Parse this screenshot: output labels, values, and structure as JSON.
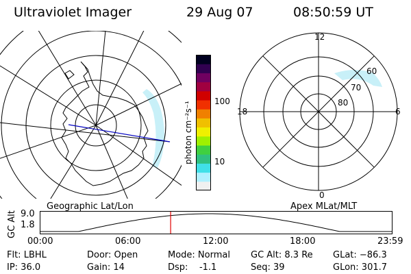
{
  "header": {
    "title": "Ultraviolet Imager",
    "date": "29 Aug 07",
    "time": "08:50:59 UT"
  },
  "left_map": {
    "caption": "Geographic Lat/Lon"
  },
  "right_map": {
    "caption": "Apex MLat/MLT",
    "mlt_labels": [
      "12",
      "18",
      "6",
      "0"
    ],
    "mlat_labels": [
      "60",
      "70",
      "80"
    ]
  },
  "colorbar": {
    "unit_label": "photon cm⁻²s⁻¹",
    "tick_labels": [
      "100",
      "10"
    ],
    "colors": [
      "#f0f0f0",
      "#b0f0ff",
      "#40e0e8",
      "#30c080",
      "#40d040",
      "#a0f000",
      "#f0f000",
      "#f0c000",
      "#f08000",
      "#f03000",
      "#d00000",
      "#a00040",
      "#700060",
      "#300050",
      "#000020"
    ]
  },
  "alt_plot": {
    "axis_label": "GC Alt",
    "y_ticks": [
      "9.0",
      "1.8"
    ],
    "x_ticks": [
      "00:00",
      "06:00",
      "12:00",
      "18:00",
      "23:59"
    ],
    "current_fraction": 0.371
  },
  "info": {
    "flt": "Flt: LBHL",
    "ip": "IP: 36.0",
    "door": "Door: Open",
    "gain": "Gain: 14",
    "mode": "Mode: Normal",
    "dsp": "Dsp:    -1.1",
    "gc_alt": "GC Alt: 8.3 Re",
    "seq": "Seq: 39",
    "glat": "GLat: −86.3",
    "glon": "GLon: 301.7"
  }
}
